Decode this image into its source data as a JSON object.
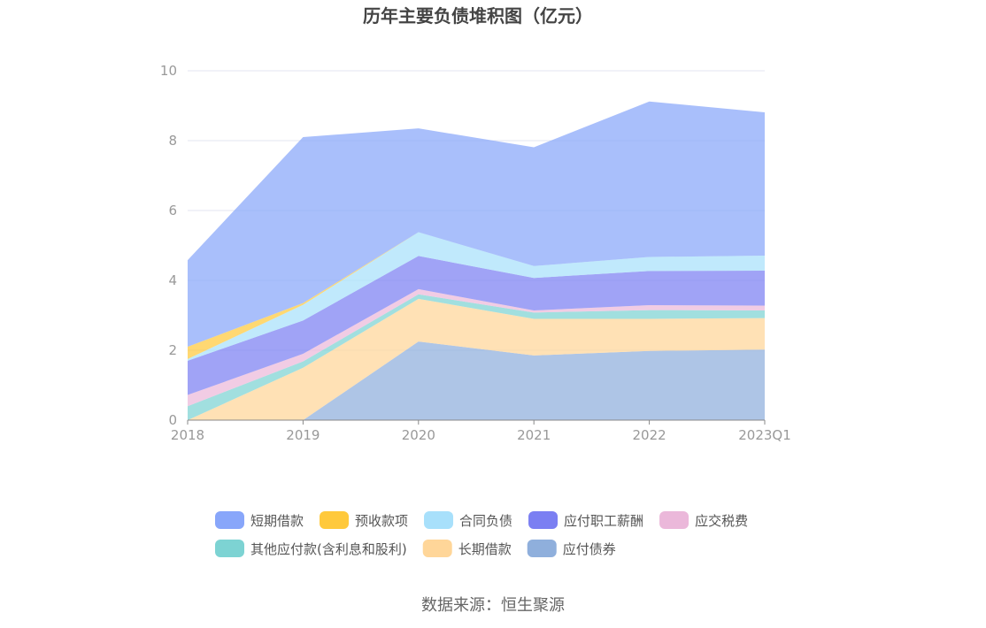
{
  "chart_data": {
    "type": "area",
    "stacked": true,
    "title": "历年主要负债堆积图（亿元）",
    "xlabel": "",
    "ylabel": "",
    "ylim": [
      0,
      10
    ],
    "yticks": [
      "0",
      "2",
      "4",
      "6",
      "8",
      "10"
    ],
    "categories": [
      "2018",
      "2019",
      "2020",
      "2021",
      "2022",
      "2023Q1"
    ],
    "grid": true,
    "legend_position": "bottom",
    "series": [
      {
        "name": "应付债券",
        "color": "#8fafdc",
        "values": [
          0,
          0,
          2.25,
          1.85,
          1.98,
          2.02
        ]
      },
      {
        "name": "长期借款",
        "color": "#ffd699",
        "values": [
          0,
          1.5,
          1.22,
          1.05,
          0.92,
          0.9
        ]
      },
      {
        "name": "其他应付款(含利息和股利)",
        "color": "#7dd3d3",
        "values": [
          0.4,
          0.18,
          0.13,
          0.18,
          0.25,
          0.22
        ]
      },
      {
        "name": "应交税费",
        "color": "#ebb8da",
        "values": [
          0.32,
          0.22,
          0.15,
          0.06,
          0.14,
          0.14
        ]
      },
      {
        "name": "应付职工薪酬",
        "color": "#7b7ff2",
        "values": [
          0.98,
          0.95,
          0.95,
          0.93,
          0.98,
          1.0
        ]
      },
      {
        "name": "合同负债",
        "color": "#a8e0fb",
        "values": [
          0.05,
          0.45,
          0.68,
          0.34,
          0.4,
          0.43
        ]
      },
      {
        "name": "预收款项",
        "color": "#ffc93c",
        "values": [
          0.35,
          0.05,
          0,
          0,
          0,
          0
        ]
      },
      {
        "name": "短期借款",
        "color": "#88a6fa",
        "values": [
          2.48,
          4.75,
          2.97,
          3.4,
          4.45,
          4.1
        ]
      }
    ]
  },
  "legend_order": [
    "短期借款",
    "预收款项",
    "合同负债",
    "应付职工薪酬",
    "应交税费",
    "其他应付款(含利息和股利)",
    "长期借款",
    "应付债券"
  ],
  "source": "数据来源：恒生聚源"
}
